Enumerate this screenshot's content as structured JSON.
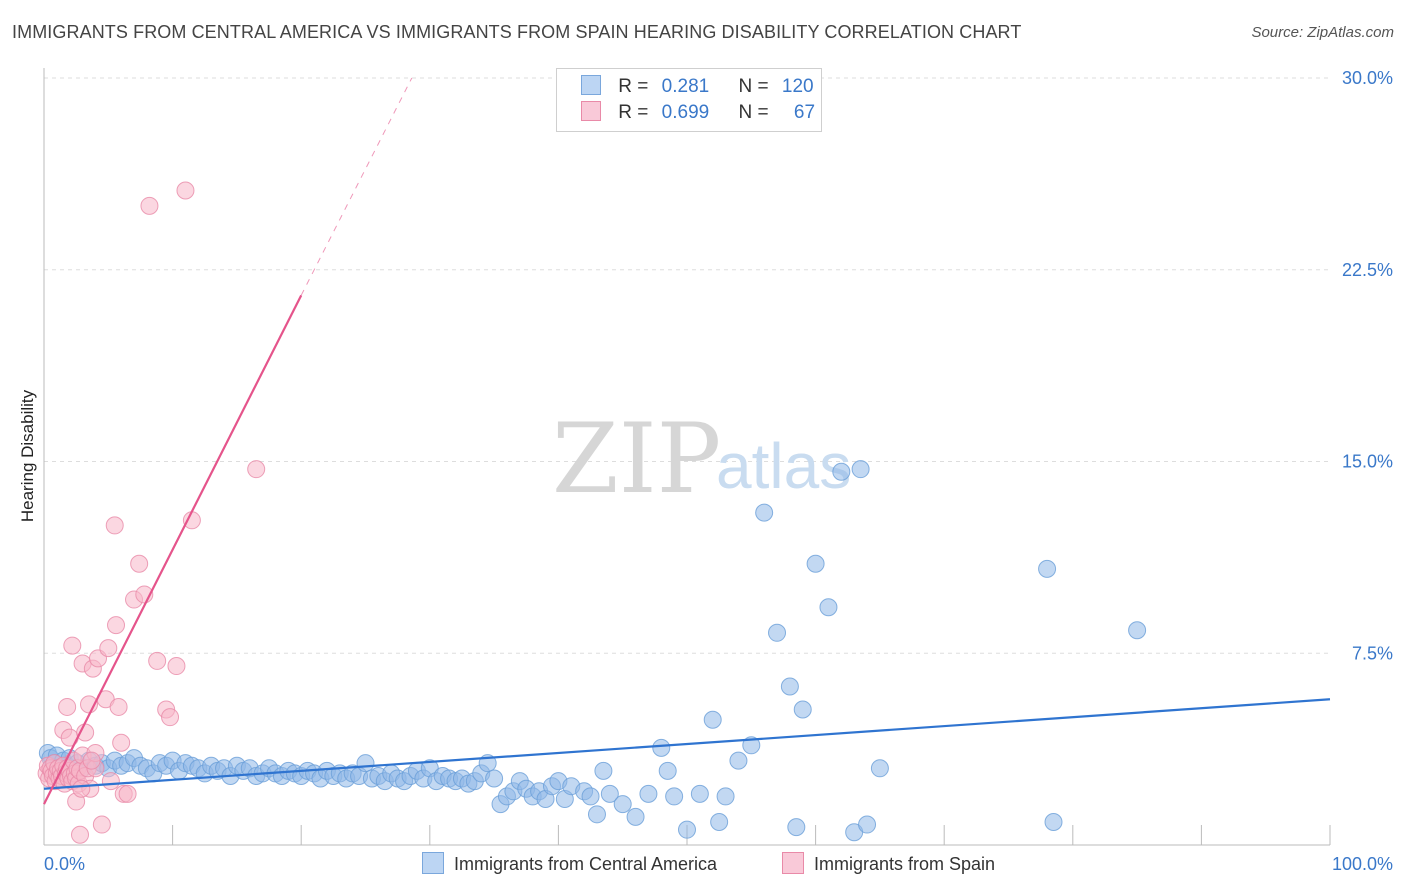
{
  "title": "IMMIGRANTS FROM CENTRAL AMERICA VS IMMIGRANTS FROM SPAIN HEARING DISABILITY CORRELATION CHART",
  "source": "Source: ZipAtlas.com",
  "watermark": {
    "zip": "ZIP",
    "atlas": "atlas"
  },
  "legend": {
    "series1": {
      "r_label": "R =",
      "r_value": "0.281",
      "n_label": "N =",
      "n_value": "120"
    },
    "series2": {
      "r_label": "R =",
      "r_value": "0.699",
      "n_label": "N =",
      "n_value": "67"
    }
  },
  "chart_data": {
    "type": "scatter",
    "ylabel": "Hearing Disability",
    "xlim": [
      0,
      100
    ],
    "ylim": [
      0,
      30
    ],
    "grid": true,
    "x_tick_labels": [
      "0.0%",
      "100.0%"
    ],
    "y_ticks": [
      {
        "value": 7.5,
        "label": "7.5%"
      },
      {
        "value": 15.0,
        "label": "15.0%"
      },
      {
        "value": 22.5,
        "label": "22.5%"
      },
      {
        "value": 30.0,
        "label": "30.0%"
      }
    ],
    "series": [
      {
        "name": "Immigrants from Central America",
        "color": "#8fb8e8",
        "edge": "#6a9fd8",
        "line_color": "#2f74d0",
        "trend": {
          "x0": 0,
          "y0": 2.2,
          "x1": 100,
          "y1": 5.7
        },
        "points": [
          [
            0.3,
            3.6
          ],
          [
            0.5,
            3.4
          ],
          [
            0.8,
            3.2
          ],
          [
            1.0,
            3.5
          ],
          [
            1.2,
            3.0
          ],
          [
            1.5,
            3.3
          ],
          [
            1.8,
            3.1
          ],
          [
            2.0,
            3.4
          ],
          [
            2.3,
            2.9
          ],
          [
            2.6,
            3.2
          ],
          [
            3,
            3.0
          ],
          [
            3.5,
            3.3
          ],
          [
            4,
            3.1
          ],
          [
            4.5,
            3.2
          ],
          [
            5,
            3.0
          ],
          [
            5.5,
            3.3
          ],
          [
            6,
            3.1
          ],
          [
            6.5,
            3.2
          ],
          [
            7,
            3.4
          ],
          [
            7.5,
            3.1
          ],
          [
            8,
            3.0
          ],
          [
            8.5,
            2.8
          ],
          [
            9,
            3.2
          ],
          [
            9.5,
            3.1
          ],
          [
            10,
            3.3
          ],
          [
            10.5,
            2.9
          ],
          [
            11,
            3.2
          ],
          [
            11.5,
            3.1
          ],
          [
            12,
            3.0
          ],
          [
            12.5,
            2.8
          ],
          [
            13,
            3.1
          ],
          [
            13.5,
            2.9
          ],
          [
            14,
            3.0
          ],
          [
            14.5,
            2.7
          ],
          [
            15,
            3.1
          ],
          [
            15.5,
            2.9
          ],
          [
            16,
            3.0
          ],
          [
            16.5,
            2.7
          ],
          [
            17,
            2.8
          ],
          [
            17.5,
            3.0
          ],
          [
            18,
            2.8
          ],
          [
            18.5,
            2.7
          ],
          [
            19,
            2.9
          ],
          [
            19.5,
            2.8
          ],
          [
            20,
            2.7
          ],
          [
            20.5,
            2.9
          ],
          [
            21,
            2.8
          ],
          [
            21.5,
            2.6
          ],
          [
            22,
            2.9
          ],
          [
            22.5,
            2.7
          ],
          [
            23,
            2.8
          ],
          [
            23.5,
            2.6
          ],
          [
            24,
            2.8
          ],
          [
            24.5,
            2.7
          ],
          [
            25,
            3.2
          ],
          [
            25.5,
            2.6
          ],
          [
            26,
            2.7
          ],
          [
            26.5,
            2.5
          ],
          [
            27,
            2.8
          ],
          [
            27.5,
            2.6
          ],
          [
            28,
            2.5
          ],
          [
            28.5,
            2.7
          ],
          [
            29,
            2.9
          ],
          [
            29.5,
            2.6
          ],
          [
            30,
            3.0
          ],
          [
            30.5,
            2.5
          ],
          [
            31,
            2.7
          ],
          [
            31.5,
            2.6
          ],
          [
            32,
            2.5
          ],
          [
            32.5,
            2.6
          ],
          [
            33,
            2.4
          ],
          [
            33.5,
            2.5
          ],
          [
            34,
            2.8
          ],
          [
            34.5,
            3.2
          ],
          [
            35,
            2.6
          ],
          [
            35.5,
            1.6
          ],
          [
            36,
            1.9
          ],
          [
            36.5,
            2.1
          ],
          [
            37,
            2.5
          ],
          [
            37.5,
            2.2
          ],
          [
            38,
            1.9
          ],
          [
            38.5,
            2.1
          ],
          [
            39,
            1.8
          ],
          [
            39.5,
            2.3
          ],
          [
            40,
            2.5
          ],
          [
            40.5,
            1.8
          ],
          [
            41,
            2.3
          ],
          [
            42,
            2.1
          ],
          [
            42.5,
            1.9
          ],
          [
            43,
            1.2
          ],
          [
            43.5,
            2.9
          ],
          [
            44,
            2.0
          ],
          [
            45,
            1.6
          ],
          [
            46,
            1.1
          ],
          [
            47,
            2.0
          ],
          [
            48,
            3.8
          ],
          [
            49,
            1.9
          ],
          [
            50,
            0.6
          ],
          [
            51,
            2.0
          ],
          [
            52,
            4.9
          ],
          [
            54,
            3.3
          ],
          [
            55,
            3.9
          ],
          [
            56,
            13.0
          ],
          [
            57,
            8.3
          ],
          [
            58,
            6.2
          ],
          [
            59,
            5.3
          ],
          [
            60,
            11.0
          ],
          [
            61,
            9.3
          ],
          [
            62,
            14.6
          ],
          [
            63,
            0.5
          ],
          [
            64,
            0.8
          ],
          [
            52.5,
            0.9
          ],
          [
            48.5,
            2.9
          ],
          [
            53,
            1.9
          ],
          [
            63.5,
            14.7
          ],
          [
            65,
            3.0
          ],
          [
            78,
            10.8
          ],
          [
            85,
            8.4
          ],
          [
            78.5,
            0.9
          ],
          [
            58.5,
            0.7
          ]
        ]
      },
      {
        "name": "Immigrants from Spain",
        "color": "#f7b6c9",
        "edge": "#e98aa8",
        "line_color": "#e5548b",
        "trend": {
          "x0": 0,
          "y0": 1.6,
          "x1": 20,
          "y1": 21.5
        },
        "trend_dash": {
          "x0": 20,
          "y0": 21.5,
          "x1": 28.6,
          "y1": 30.0
        },
        "points": [
          [
            0.2,
            2.8
          ],
          [
            0.3,
            3.1
          ],
          [
            0.4,
            2.6
          ],
          [
            0.5,
            3.0
          ],
          [
            0.6,
            2.9
          ],
          [
            0.7,
            2.7
          ],
          [
            0.8,
            3.2
          ],
          [
            0.9,
            2.5
          ],
          [
            1.0,
            2.8
          ],
          [
            1.1,
            3.0
          ],
          [
            1.2,
            2.6
          ],
          [
            1.3,
            2.9
          ],
          [
            1.4,
            2.7
          ],
          [
            1.5,
            3.1
          ],
          [
            1.6,
            2.4
          ],
          [
            1.7,
            2.8
          ],
          [
            1.8,
            3.0
          ],
          [
            1.9,
            2.6
          ],
          [
            2.0,
            2.9
          ],
          [
            2.1,
            2.7
          ],
          [
            2.2,
            2.5
          ],
          [
            2.3,
            3.3
          ],
          [
            2.4,
            2.8
          ],
          [
            2.5,
            2.6
          ],
          [
            2.6,
            3.0
          ],
          [
            2.7,
            2.4
          ],
          [
            2.8,
            2.9
          ],
          [
            3.0,
            3.5
          ],
          [
            3.2,
            2.7
          ],
          [
            3.4,
            3.0
          ],
          [
            1.5,
            4.5
          ],
          [
            1.8,
            5.4
          ],
          [
            2.0,
            4.2
          ],
          [
            2.2,
            7.8
          ],
          [
            2.5,
            1.7
          ],
          [
            2.8,
            0.4
          ],
          [
            3.0,
            7.1
          ],
          [
            3.2,
            4.4
          ],
          [
            3.5,
            5.5
          ],
          [
            3.6,
            2.2
          ],
          [
            3.8,
            6.9
          ],
          [
            4.0,
            3.0
          ],
          [
            4.2,
            7.3
          ],
          [
            4.5,
            0.8
          ],
          [
            4.8,
            5.7
          ],
          [
            5.0,
            7.7
          ],
          [
            5.2,
            2.5
          ],
          [
            5.5,
            12.5
          ],
          [
            5.6,
            8.6
          ],
          [
            5.8,
            5.4
          ],
          [
            6.0,
            4.0
          ],
          [
            6.2,
            2.0
          ],
          [
            6.5,
            2.0
          ],
          [
            7.0,
            9.6
          ],
          [
            7.4,
            11.0
          ],
          [
            7.8,
            9.8
          ],
          [
            8.2,
            25.0
          ],
          [
            8.8,
            7.2
          ],
          [
            9.5,
            5.3
          ],
          [
            9.8,
            5.0
          ],
          [
            10.3,
            7.0
          ],
          [
            11.0,
            25.6
          ],
          [
            11.5,
            12.7
          ],
          [
            16.5,
            14.7
          ],
          [
            4.0,
            3.6
          ],
          [
            3.7,
            3.3
          ],
          [
            2.9,
            2.2
          ]
        ]
      }
    ]
  },
  "bottom_legend": {
    "series1": "Immigrants from Central America",
    "series2": "Immigrants from Spain"
  }
}
